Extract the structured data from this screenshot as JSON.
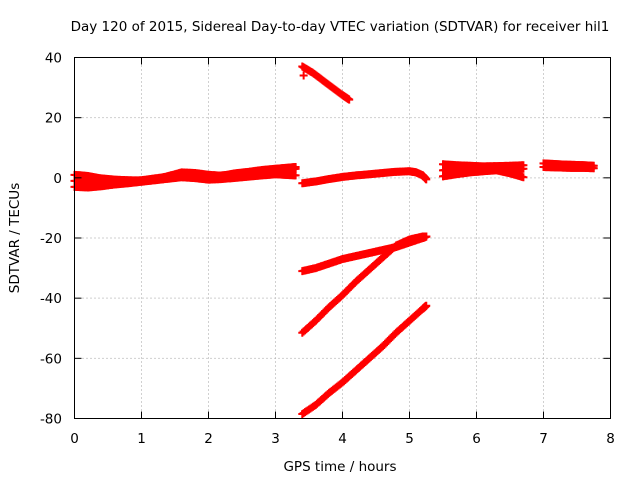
{
  "chart_data": {
    "type": "scatter",
    "title": "Day 120 of 2015, Sidereal Day-to-day VTEC variation (SDTVAR) for receiver hil1",
    "xlabel": "GPS time / hours",
    "ylabel": "SDTVAR / TECUs",
    "xlim": [
      0,
      8
    ],
    "ylim": [
      -80,
      40
    ],
    "xticks": [
      0,
      1,
      2,
      3,
      4,
      5,
      6,
      7,
      8
    ],
    "yticks": [
      -80,
      -60,
      -40,
      -20,
      0,
      20,
      40
    ],
    "xtick_labels": [
      "0",
      "1",
      "2",
      "3",
      "4",
      "5",
      "6",
      "7",
      "8"
    ],
    "ytick_labels": [
      "-80",
      "-60",
      "-40",
      "-20",
      "0",
      "20",
      "40"
    ],
    "grid": true,
    "legend": "none",
    "marker": "plus",
    "color": "#ff0000",
    "series": [
      {
        "x": [
          0.0,
          0.2,
          0.4,
          0.6,
          0.8,
          1.0,
          1.2,
          1.4,
          1.6,
          1.8,
          2.0,
          2.2,
          2.4,
          2.6,
          2.8,
          3.0,
          3.15,
          3.3
        ],
        "y": [
          -1.0,
          -1.3,
          -1.5,
          -1.2,
          -1.0,
          -0.8,
          -0.2,
          0.4,
          1.0,
          0.8,
          0.5,
          0.8,
          1.2,
          1.6,
          2.0,
          2.4,
          2.7,
          3.0
        ]
      },
      {
        "x": [
          0.0,
          0.2,
          0.4,
          0.6,
          0.8,
          1.0,
          1.2,
          1.4,
          1.6,
          1.8,
          2.0,
          2.2,
          2.4,
          2.6,
          2.8,
          3.0,
          3.15,
          3.3
        ],
        "y": [
          1.0,
          0.6,
          -0.2,
          -0.6,
          -0.8,
          -0.9,
          -0.5,
          0.6,
          1.8,
          1.6,
          1.0,
          0.7,
          1.5,
          2.0,
          2.6,
          3.0,
          3.3,
          3.6
        ]
      },
      {
        "x": [
          0.0,
          0.2,
          0.4,
          0.6,
          0.8,
          1.0,
          1.2,
          1.4,
          1.6,
          1.8,
          2.0,
          2.2,
          2.4,
          2.6,
          2.8,
          3.0,
          3.15,
          3.3
        ],
        "y": [
          -3.0,
          -3.2,
          -2.8,
          -2.2,
          -1.8,
          -1.3,
          -0.8,
          -0.3,
          0.2,
          -0.1,
          -0.6,
          -0.4,
          0.0,
          0.4,
          0.8,
          1.2,
          1.0,
          0.8
        ]
      },
      {
        "x": [
          3.4,
          3.6,
          3.8,
          4.0,
          4.2,
          4.4,
          4.6,
          4.8,
          5.0,
          5.1,
          5.2,
          5.25
        ],
        "y": [
          -1.8,
          -1.2,
          -0.4,
          0.3,
          0.8,
          1.2,
          1.6,
          2.0,
          2.2,
          1.8,
          0.8,
          -0.5
        ]
      },
      {
        "x": [
          5.5,
          5.7,
          5.9,
          6.1,
          6.3,
          6.5,
          6.7
        ],
        "y": [
          2.5,
          3.0,
          3.0,
          2.8,
          2.6,
          2.8,
          3.0
        ]
      },
      {
        "x": [
          5.5,
          5.7,
          5.9,
          6.1,
          6.3,
          6.5,
          6.7
        ],
        "y": [
          4.5,
          4.2,
          4.0,
          3.8,
          3.9,
          4.0,
          4.2
        ]
      },
      {
        "x": [
          5.5,
          5.7,
          5.9,
          6.1,
          6.3,
          6.5,
          6.7
        ],
        "y": [
          0.5,
          1.2,
          1.8,
          2.2,
          2.5,
          1.5,
          0.2
        ]
      },
      {
        "x": [
          7.0,
          7.15,
          7.3,
          7.45,
          7.6,
          7.75
        ],
        "y": [
          4.8,
          4.6,
          4.4,
          4.3,
          4.2,
          4.0
        ]
      },
      {
        "x": [
          7.0,
          7.15,
          7.3,
          7.45,
          7.6,
          7.75
        ],
        "y": [
          3.6,
          3.5,
          3.4,
          3.3,
          3.3,
          3.2
        ]
      },
      {
        "x": [
          3.4,
          3.55,
          3.7,
          3.85,
          4.0,
          4.1
        ],
        "y": [
          37.0,
          35.0,
          32.5,
          30.0,
          27.5,
          26.0
        ]
      },
      {
        "x": [
          3.42
        ],
        "y": [
          34.0
        ]
      },
      {
        "x": [
          3.4,
          3.6,
          3.8,
          4.0,
          4.2,
          4.4,
          4.6,
          4.8,
          5.0,
          5.2,
          5.25
        ],
        "y": [
          -31.0,
          -30.0,
          -28.5,
          -27.0,
          -26.0,
          -25.0,
          -24.0,
          -23.0,
          -21.5,
          -20.0,
          -19.5
        ]
      },
      {
        "x": [
          3.4,
          3.6,
          3.8,
          4.0,
          4.2,
          4.4,
          4.6,
          4.8,
          5.0,
          5.2,
          5.25
        ],
        "y": [
          -51.5,
          -47.5,
          -43.0,
          -39.0,
          -34.5,
          -30.5,
          -26.5,
          -22.5,
          -20.5,
          -19.5,
          -19.5
        ]
      },
      {
        "x": [
          3.4,
          3.6,
          3.8,
          4.0,
          4.2,
          4.4,
          4.6,
          4.8,
          5.0,
          5.2,
          5.25
        ],
        "y": [
          -78.5,
          -75.5,
          -71.5,
          -68.0,
          -64.0,
          -60.0,
          -56.0,
          -51.5,
          -47.5,
          -43.5,
          -42.5
        ]
      }
    ]
  }
}
